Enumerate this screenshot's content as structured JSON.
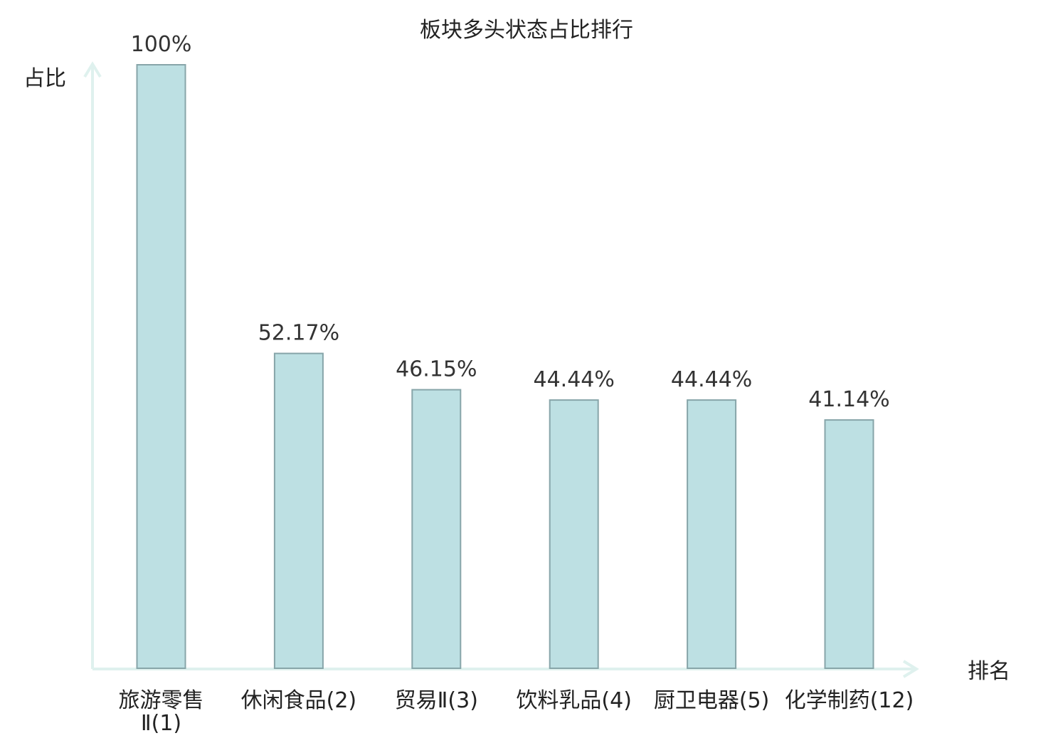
{
  "chart_data": {
    "type": "bar",
    "title": "板块多头状态占比排行",
    "xlabel": "排名",
    "ylabel": "占比",
    "categories": [
      {
        "name": "旅游零售",
        "suffix": "Ⅱ(1)",
        "wrap": true,
        "highlight": false
      },
      {
        "name": "休闲食品",
        "suffix": "(2)",
        "wrap": false,
        "highlight": false
      },
      {
        "name": "贸易",
        "suffix": "Ⅱ(3)",
        "wrap": false,
        "highlight": false
      },
      {
        "name": "饮料乳品",
        "suffix": "(4)",
        "wrap": false,
        "highlight": false
      },
      {
        "name": "厨卫电器",
        "suffix": "(5)",
        "wrap": false,
        "highlight": false
      },
      {
        "name": "化学制药",
        "suffix": "(12)",
        "wrap": false,
        "highlight": true
      }
    ],
    "values": [
      100,
      52.17,
      46.15,
      44.44,
      44.44,
      41.14
    ],
    "value_labels": [
      "100%",
      "52.17%",
      "46.15%",
      "44.44%",
      "44.44%",
      "41.14%"
    ],
    "ylim": [
      0,
      100
    ],
    "grid": false,
    "colors": {
      "bar_fill": "#bde0e3",
      "bar_stroke": "#87a5a9",
      "axis": "#dff1ee",
      "highlight_text": "#e02020",
      "text": "#222222"
    }
  }
}
